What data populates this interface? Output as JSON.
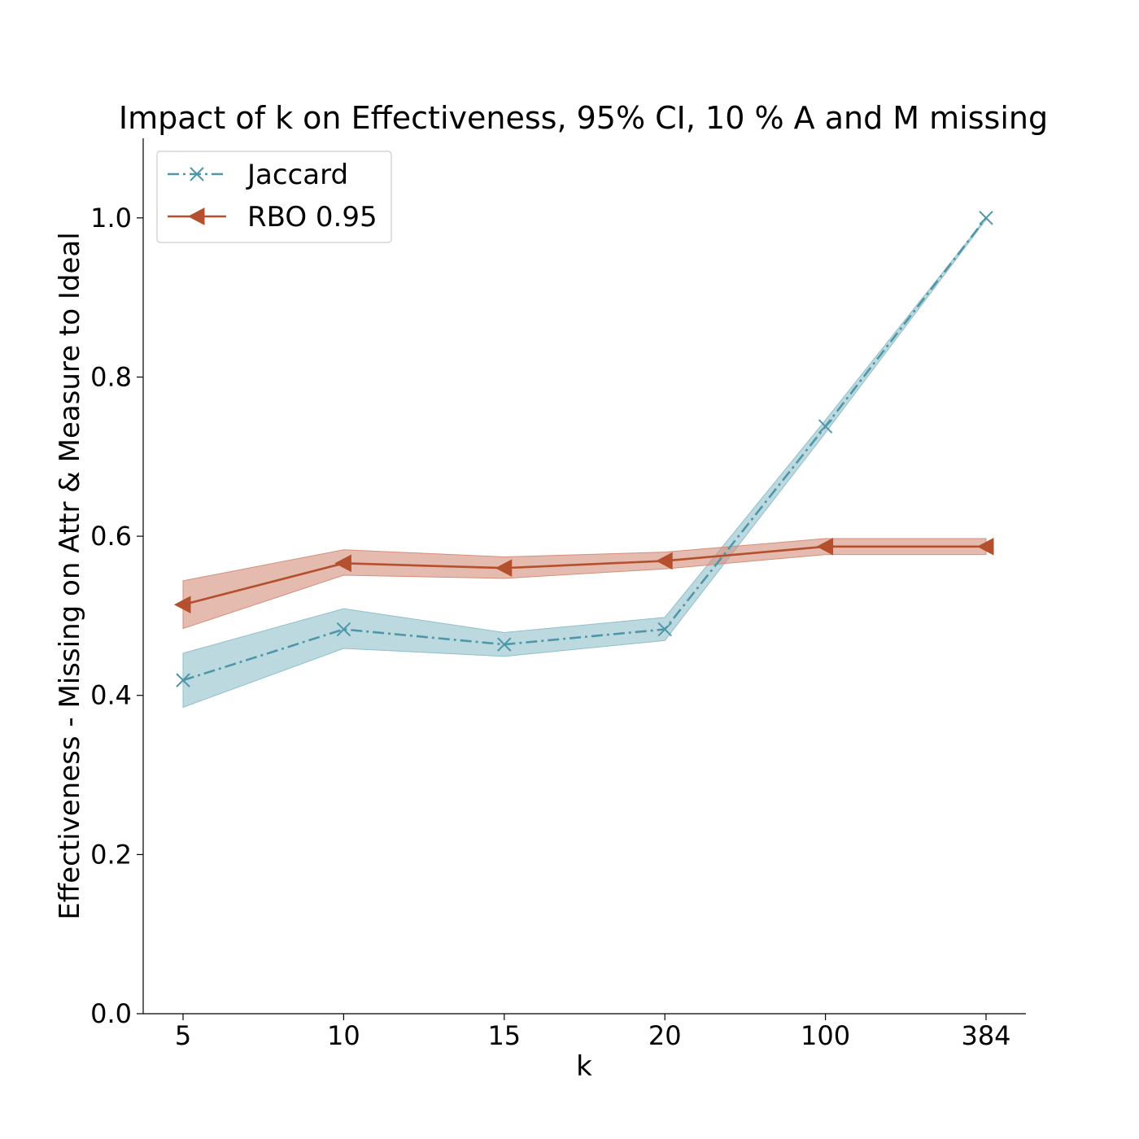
{
  "chart_data": {
    "type": "line",
    "title": "Impact of k on Effectiveness, 95% CI, 10 % A and M missing",
    "xlabel": "k",
    "ylabel": "Effectiveness - Missing on Attr & Measure to Ideal",
    "categories": [
      "5",
      "10",
      "15",
      "20",
      "100",
      "384"
    ],
    "ylim": [
      0.0,
      1.1
    ],
    "yticks": [
      0.0,
      0.2,
      0.4,
      0.6,
      0.8,
      1.0
    ],
    "ytick_labels": [
      "0.0",
      "0.2",
      "0.4",
      "0.6",
      "0.8",
      "1.0"
    ],
    "grid": false,
    "legend_position": "top-left",
    "series": [
      {
        "name": "Jaccard",
        "color": "#4f97a8",
        "band_color": "#8fc0cc",
        "marker": "x",
        "line_style": "dash-dot",
        "values": [
          0.419,
          0.483,
          0.464,
          0.483,
          0.738,
          1.0
        ],
        "ci_low": [
          0.385,
          0.459,
          0.449,
          0.469,
          0.73,
          0.998
        ],
        "ci_high": [
          0.453,
          0.509,
          0.479,
          0.498,
          0.746,
          1.0
        ]
      },
      {
        "name": "RBO 0.95",
        "color": "#b5502e",
        "band_color": "#d68e7a",
        "marker": "triangle-left",
        "line_style": "solid",
        "values": [
          0.514,
          0.566,
          0.56,
          0.569,
          0.587,
          0.587
        ],
        "ci_low": [
          0.484,
          0.551,
          0.547,
          0.559,
          0.577,
          0.577
        ],
        "ci_high": [
          0.544,
          0.583,
          0.574,
          0.58,
          0.597,
          0.597
        ]
      }
    ]
  }
}
